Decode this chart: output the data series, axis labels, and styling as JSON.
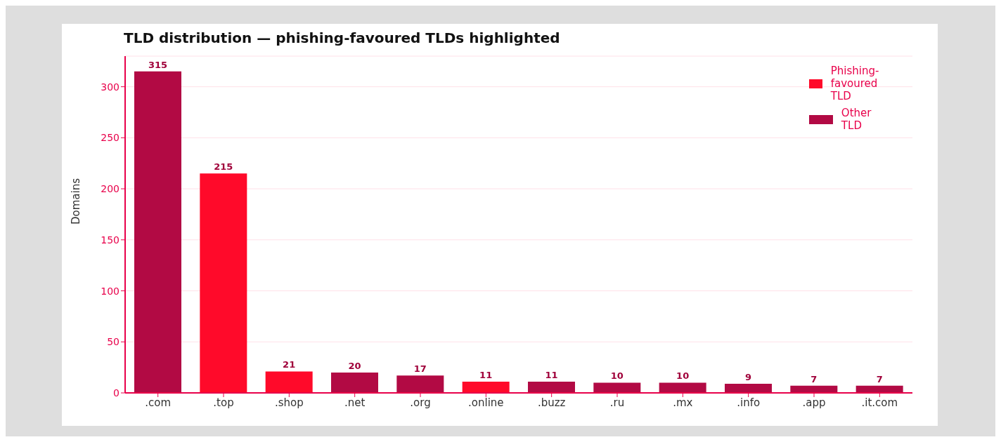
{
  "chart_data": {
    "type": "bar",
    "title": "TLD distribution — phishing-favoured TLDs highlighted",
    "ylabel": "Domains",
    "categories": [
      ".com",
      ".top",
      ".shop",
      ".net",
      ".org",
      ".online",
      ".buzz",
      ".ru",
      ".mx",
      ".info",
      ".app",
      ".it.com"
    ],
    "series": [
      {
        "name": "Phishing-favoured TLD",
        "color": "#ff0a2a",
        "values": [
          null,
          215,
          21,
          null,
          null,
          11,
          null,
          null,
          null,
          null,
          null,
          null
        ]
      },
      {
        "name": "Other TLD",
        "color": "#b20a44",
        "values": [
          315,
          null,
          null,
          20,
          17,
          null,
          11,
          10,
          10,
          9,
          7,
          7
        ]
      }
    ],
    "stacked": true,
    "ylim": [
      0,
      330
    ],
    "yticks": [
      0,
      50,
      100,
      150,
      200,
      250,
      300
    ],
    "grid": "y",
    "legend": "top right",
    "data_labels": true
  }
}
